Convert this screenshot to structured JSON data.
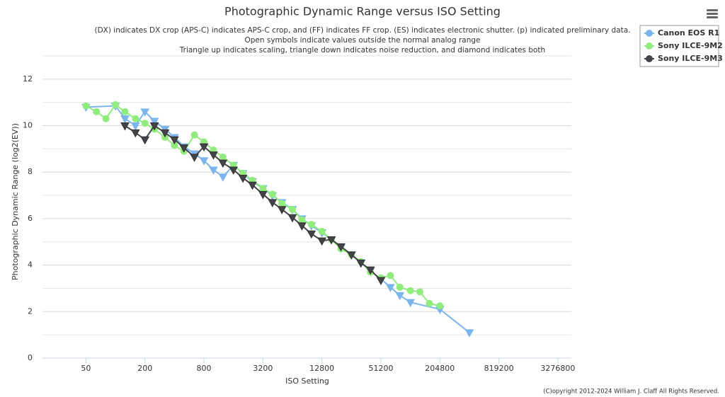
{
  "chart_data": {
    "type": "line",
    "title": "Photographic Dynamic Range versus ISO Setting",
    "subtitle": [
      "(DX) indicates DX crop (APS-C) indicates APS-C crop, and (FF) indicates FF crop. (ES) indicates electronic shutter. (p) indicated preliminary data.",
      "Open symbols indicate values outside the normal analog range",
      "Triangle up indicates scaling, triangle down indicates noise reduction, and diamond indicates both"
    ],
    "x_label": "ISO Setting",
    "y_label": "Photographic Dynamic Range (log2(EV))",
    "credit": "(C)opyright 2012-2024 William J. Claff All Rights Reserved.",
    "log_x": true,
    "xlim": [
      18,
      4500000
    ],
    "xticks": [
      50,
      200,
      800,
      3200,
      12800,
      51200,
      204800,
      819200,
      3276800
    ],
    "ylim": [
      0,
      13
    ],
    "yticks": [
      0,
      2,
      4,
      6,
      8,
      10,
      12
    ],
    "y_minor_grid": [
      1,
      3,
      5,
      7,
      9,
      11,
      13
    ],
    "grid": true,
    "legend": "top-right",
    "series": [
      {
        "name": "Canon EOS R1",
        "color": "#7cb5ec",
        "x": [
          50,
          100,
          125,
          160,
          200,
          250,
          320,
          400,
          500,
          640,
          800,
          1000,
          1250,
          1600,
          2000,
          2500,
          3200,
          4000,
          5000,
          6400,
          8000,
          10000,
          12800,
          16000,
          20000,
          25600,
          32000,
          40000,
          51200,
          64000,
          80000,
          102400,
          204800,
          409600
        ],
        "values": [
          10.8,
          10.85,
          10.3,
          10.0,
          10.6,
          10.2,
          9.85,
          9.5,
          9.1,
          8.8,
          8.5,
          8.1,
          7.8,
          8.3,
          7.95,
          7.6,
          7.3,
          7.0,
          6.7,
          6.4,
          6.0,
          5.7,
          5.4,
          5.1,
          4.75,
          4.45,
          4.1,
          3.75,
          3.4,
          3.05,
          2.7,
          2.4,
          2.1,
          1.1
        ]
      },
      {
        "name": "Sony ILCE-9M2",
        "color": "#90ed7d",
        "x": [
          50,
          64,
          80,
          100,
          125,
          160,
          200,
          250,
          320,
          400,
          500,
          640,
          800,
          1000,
          1250,
          1600,
          2000,
          2500,
          3200,
          4000,
          5000,
          6400,
          8000,
          10000,
          12800,
          16000,
          20000,
          25600,
          32000,
          40000,
          51200,
          64000,
          80000,
          102400,
          128000,
          160000,
          204800
        ],
        "values": [
          10.85,
          10.6,
          10.3,
          10.9,
          10.6,
          10.3,
          10.1,
          9.85,
          9.5,
          9.15,
          8.9,
          9.6,
          9.3,
          8.95,
          8.65,
          8.3,
          7.95,
          7.65,
          7.3,
          7.05,
          6.65,
          6.4,
          5.95,
          5.75,
          5.45,
          5.1,
          4.7,
          4.45,
          4.15,
          3.7,
          3.45,
          3.55,
          3.05,
          2.9,
          2.85,
          2.35,
          2.25
        ]
      },
      {
        "name": "Sony ILCE-9M3",
        "color": "#434348",
        "x": [
          125,
          160,
          200,
          250,
          320,
          400,
          500,
          640,
          800,
          1000,
          1250,
          1600,
          2000,
          2500,
          3200,
          4000,
          5000,
          6400,
          8000,
          10000,
          12800,
          16000,
          20000,
          25600,
          32000,
          40000,
          51200
        ],
        "values": [
          10.0,
          9.7,
          9.4,
          10.0,
          9.7,
          9.4,
          9.05,
          8.65,
          9.1,
          8.75,
          8.4,
          8.1,
          7.75,
          7.45,
          7.05,
          6.7,
          6.4,
          6.05,
          5.7,
          5.35,
          5.05,
          5.1,
          4.8,
          4.45,
          4.1,
          3.8,
          3.35
        ]
      }
    ]
  }
}
